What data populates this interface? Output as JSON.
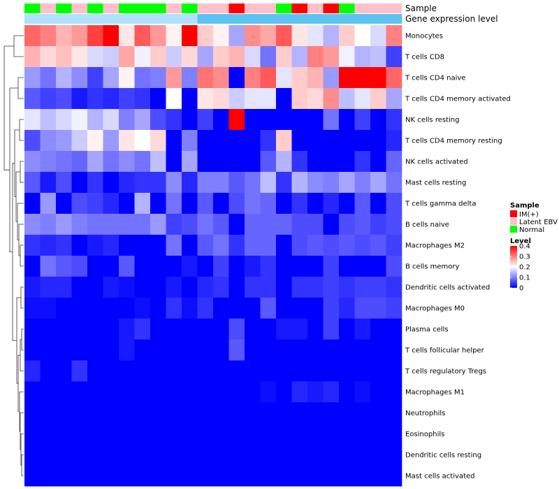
{
  "chart_data": {
    "type": "heatmap",
    "annotations": [
      {
        "name": "Sample",
        "values": [
          "Normal",
          "Latent EBV",
          "Normal",
          "Latent EBV",
          "Normal",
          "Latent EBV",
          "Normal",
          "Normal",
          "Normal",
          "Latent EBV",
          "Normal",
          "Latent EBV",
          "Latent EBV",
          "IM(+)",
          "Latent EBV",
          "Latent EBV",
          "Normal",
          "IM(+)",
          "Latent EBV",
          "IM(+)",
          "Normal",
          "Latent EBV",
          "Latent EBV",
          "Latent EBV"
        ]
      },
      {
        "name": "Gene expression level",
        "values": [
          "low",
          "low",
          "low",
          "low",
          "low",
          "low",
          "low",
          "low",
          "low",
          "low",
          "low",
          "high",
          "high",
          "high",
          "high",
          "high",
          "high",
          "high",
          "high",
          "high",
          "high",
          "high",
          "high",
          "high"
        ]
      }
    ],
    "rows": [
      "Monocytes",
      "T cells CD8",
      "T cells CD4 naive",
      "T cells CD4 memory activated",
      "NK cells resting",
      "T cells CD4 memory resting",
      "NK cells activated",
      "Mast cells resting",
      "T cells gamma delta",
      "B cells naive",
      "Macrophages M2",
      "B cells memory",
      "Dendritic cells activated",
      "Macrophages M0",
      "Plasma cells",
      "T cells follicular helper",
      "T cells regulatory  Tregs",
      "Macrophages M1",
      "Neutrophils",
      "Eosinophils",
      "Dendritic cells resting",
      "Mast cells activated"
    ],
    "values": [
      [
        0.32,
        0.3,
        0.26,
        0.28,
        0.35,
        0.4,
        0.22,
        0.33,
        0.28,
        0.21,
        0.4,
        0.24,
        0.21,
        0.13,
        0.29,
        0.27,
        0.33,
        0.22,
        0.18,
        0.14,
        0.24,
        0.2,
        0.17,
        0.3
      ],
      [
        0.26,
        0.23,
        0.25,
        0.22,
        0.17,
        0.16,
        0.27,
        0.19,
        0.24,
        0.16,
        0.23,
        0.13,
        0.24,
        0.26,
        0.17,
        0.09,
        0.24,
        0.14,
        0.3,
        0.28,
        0.19,
        0.14,
        0.15,
        0.05
      ],
      [
        0.12,
        0.09,
        0.14,
        0.11,
        0.05,
        0.13,
        0.21,
        0.09,
        0.1,
        0.28,
        0.1,
        0.31,
        0.29,
        0.0,
        0.3,
        0.33,
        0.18,
        0.24,
        0.26,
        0.12,
        0.4,
        0.4,
        0.4,
        0.32
      ],
      [
        0.07,
        0.05,
        0.06,
        0.02,
        0.04,
        0.03,
        0.05,
        0.04,
        0.0,
        0.2,
        0.0,
        0.22,
        0.23,
        0.16,
        0.18,
        0.18,
        0.0,
        0.24,
        0.23,
        0.29,
        0.15,
        0.18,
        0.24,
        0.13
      ],
      [
        0.18,
        0.15,
        0.17,
        0.19,
        0.14,
        0.17,
        0.1,
        0.13,
        0.06,
        0.04,
        0.0,
        0.05,
        0.0,
        0.4,
        0.0,
        0.0,
        0.0,
        0.0,
        0.0,
        0.09,
        0.0,
        0.05,
        0.0,
        0.04
      ],
      [
        0.06,
        0.11,
        0.12,
        0.16,
        0.21,
        0.12,
        0.22,
        0.2,
        0.23,
        0.0,
        0.1,
        0.0,
        0.0,
        0.0,
        0.0,
        0.04,
        0.24,
        0.0,
        0.0,
        0.0,
        0.0,
        0.0,
        0.0,
        0.03
      ],
      [
        0.11,
        0.1,
        0.09,
        0.08,
        0.13,
        0.09,
        0.11,
        0.09,
        0.15,
        0.0,
        0.13,
        0.0,
        0.0,
        0.0,
        0.0,
        0.07,
        0.14,
        0.04,
        0.0,
        0.0,
        0.0,
        0.04,
        0.0,
        0.08
      ],
      [
        0.07,
        0.02,
        0.06,
        0.0,
        0.04,
        0.0,
        0.03,
        0.04,
        0.04,
        0.11,
        0.03,
        0.1,
        0.1,
        0.07,
        0.09,
        0.15,
        0.04,
        0.14,
        0.11,
        0.1,
        0.13,
        0.1,
        0.13,
        0.09
      ],
      [
        0.0,
        0.12,
        0.0,
        0.06,
        0.05,
        0.03,
        0.0,
        0.14,
        0.0,
        0.09,
        0.0,
        0.07,
        0.0,
        0.06,
        0.09,
        0.08,
        0.0,
        0.04,
        0.0,
        0.03,
        0.0,
        0.07,
        0.0,
        0.06
      ],
      [
        0.11,
        0.1,
        0.12,
        0.1,
        0.09,
        0.09,
        0.09,
        0.09,
        0.12,
        0.05,
        0.06,
        0.09,
        0.07,
        0.0,
        0.08,
        0.08,
        0.08,
        0.06,
        0.06,
        0.0,
        0.06,
        0.07,
        0.05,
        0.06
      ],
      [
        0.04,
        0.03,
        0.04,
        0.0,
        0.02,
        0.03,
        0.0,
        0.0,
        0.0,
        0.09,
        0.0,
        0.07,
        0.09,
        0.04,
        0.08,
        0.08,
        0.0,
        0.06,
        0.07,
        0.06,
        0.07,
        0.06,
        0.07,
        0.05
      ],
      [
        0.0,
        0.09,
        0.07,
        0.06,
        0.0,
        0.0,
        0.07,
        0.0,
        0.0,
        0.0,
        0.02,
        0.0,
        0.05,
        0.0,
        0.02,
        0.04,
        0.0,
        0.0,
        0.0,
        0.05,
        0.0,
        0.0,
        0.0,
        0.06
      ],
      [
        0.02,
        0.03,
        0.03,
        0.0,
        0.0,
        0.02,
        0.01,
        0.0,
        0.0,
        0.02,
        0.0,
        0.03,
        0.04,
        0.0,
        0.04,
        0.04,
        0.0,
        0.04,
        0.04,
        0.05,
        0.04,
        0.05,
        0.05,
        0.04
      ],
      [
        0.01,
        0.01,
        0.0,
        0.0,
        0.0,
        0.0,
        0.0,
        0.01,
        0.0,
        0.04,
        0.01,
        0.04,
        0.0,
        0.0,
        0.0,
        0.07,
        0.0,
        0.0,
        0.0,
        0.05,
        0.03,
        0.06,
        0.06,
        0.05
      ],
      [
        0.0,
        0.0,
        0.0,
        0.0,
        0.0,
        0.0,
        0.02,
        0.04,
        0.0,
        0.0,
        0.0,
        0.0,
        0.0,
        0.06,
        0.0,
        0.0,
        0.02,
        0.02,
        0.0,
        0.05,
        0.0,
        0.02,
        0.0,
        0.0
      ],
      [
        0.0,
        0.0,
        0.0,
        0.0,
        0.0,
        0.0,
        0.02,
        0.0,
        0.0,
        0.0,
        0.0,
        0.0,
        0.0,
        0.07,
        0.0,
        0.0,
        0.0,
        0.0,
        0.0,
        0.0,
        0.0,
        0.0,
        0.0,
        0.0
      ],
      [
        0.03,
        0.0,
        0.0,
        0.04,
        0.0,
        0.0,
        0.0,
        0.0,
        0.0,
        0.0,
        0.0,
        0.0,
        0.0,
        0.0,
        0.0,
        0.0,
        0.0,
        0.0,
        0.0,
        0.0,
        0.0,
        0.0,
        0.0,
        0.0
      ],
      [
        0.0,
        0.0,
        0.0,
        0.0,
        0.0,
        0.0,
        0.0,
        0.0,
        0.0,
        0.0,
        0.0,
        0.0,
        0.0,
        0.0,
        0.0,
        0.01,
        0.0,
        0.03,
        0.02,
        0.03,
        0.0,
        0.01,
        0.0,
        0.0
      ],
      [
        0.0,
        0.0,
        0.0,
        0.0,
        0.0,
        0.0,
        0.0,
        0.0,
        0.0,
        0.0,
        0.0,
        0.0,
        0.0,
        0.0,
        0.0,
        0.0,
        0.0,
        0.0,
        0.0,
        0.0,
        0.0,
        0.0,
        0.0,
        0.0
      ],
      [
        0.0,
        0.0,
        0.0,
        0.0,
        0.0,
        0.0,
        0.0,
        0.0,
        0.0,
        0.0,
        0.0,
        0.0,
        0.0,
        0.0,
        0.0,
        0.0,
        0.0,
        0.0,
        0.0,
        0.0,
        0.0,
        0.0,
        0.0,
        0.0
      ],
      [
        0.0,
        0.0,
        0.0,
        0.0,
        0.0,
        0.0,
        0.0,
        0.0,
        0.0,
        0.0,
        0.0,
        0.0,
        0.0,
        0.0,
        0.0,
        0.0,
        0.0,
        0.0,
        0.0,
        0.0,
        0.0,
        0.0,
        0.0,
        0.0
      ],
      [
        0.0,
        0.0,
        0.0,
        0.0,
        0.0,
        0.0,
        0.0,
        0.0,
        0.0,
        0.0,
        0.0,
        0.0,
        0.0,
        0.0,
        0.0,
        0.0,
        0.0,
        0.0,
        0.0,
        0.0,
        0.0,
        0.0,
        0.0,
        0.0
      ]
    ],
    "color_scale": {
      "min": 0,
      "mid": 0.2,
      "max": 0.4,
      "low_color": "#0000ff",
      "mid_color": "#ffffff",
      "high_color": "#ff0000"
    },
    "legends": [
      {
        "title": "Sample",
        "entries": [
          {
            "label": "IM(+)",
            "color": "#ff0000"
          },
          {
            "label": "Latent EBV",
            "color": "#ffc0cb"
          },
          {
            "label": "Normal",
            "color": "#00ff00"
          }
        ]
      },
      {
        "title": "Level",
        "ticks": [
          "0.4",
          "0.3",
          "0.2",
          "0.1",
          "0"
        ],
        "tick_values": [
          0.4,
          0.3,
          0.2,
          0.1,
          0
        ]
      }
    ],
    "gene_level_colors": {
      "low": "#b0e2ff",
      "high": "#5cc3f0"
    },
    "legend_placement": "right",
    "row_dendrogram": true
  }
}
